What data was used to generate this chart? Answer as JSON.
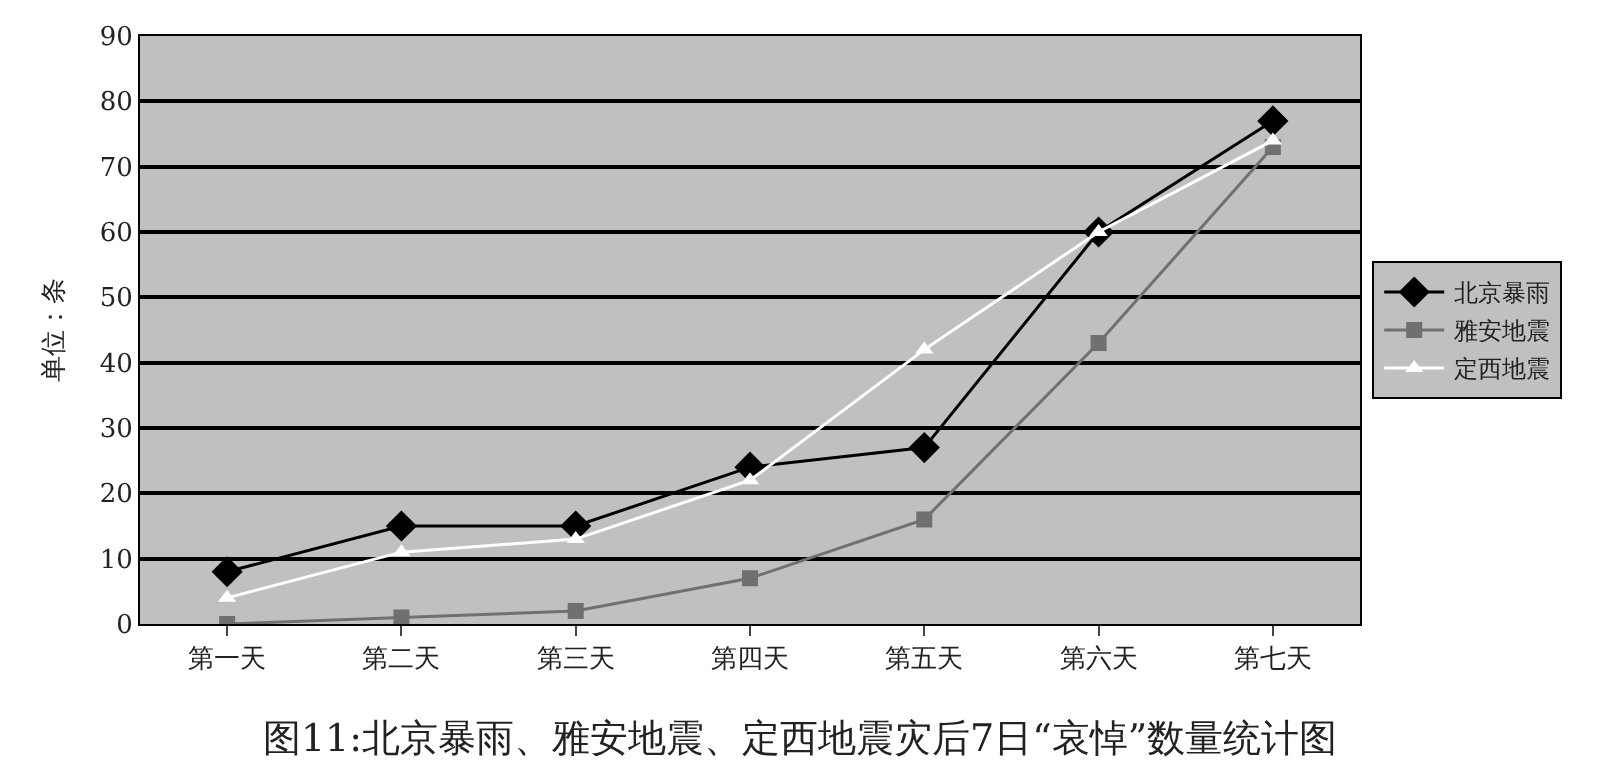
{
  "chart_data": {
    "type": "line",
    "title": "图11:北京暴雨、雅安地震、定西地震灾后7日“哀悼”数量统计图",
    "ylabel": "单位：条",
    "categories": [
      "第一天",
      "第二天",
      "第三天",
      "第四天",
      "第五天",
      "第六天",
      "第七天"
    ],
    "series": [
      {
        "name": "北京暴雨",
        "color": "#000000",
        "marker": "diamond",
        "values": [
          8,
          15,
          15,
          24,
          27,
          60,
          77
        ]
      },
      {
        "name": "雅安地震",
        "color": "#707070",
        "marker": "square",
        "values": [
          0,
          1,
          2,
          7,
          16,
          43,
          73
        ]
      },
      {
        "name": "定西地震",
        "color": "#ffffff",
        "marker": "triangle",
        "values": [
          4,
          11,
          13,
          22,
          42,
          60,
          74
        ]
      }
    ],
    "ylim": [
      0,
      90
    ],
    "yticks": [
      0,
      10,
      20,
      30,
      40,
      50,
      60,
      70,
      80,
      90
    ],
    "grid": "y",
    "legend": "right"
  }
}
